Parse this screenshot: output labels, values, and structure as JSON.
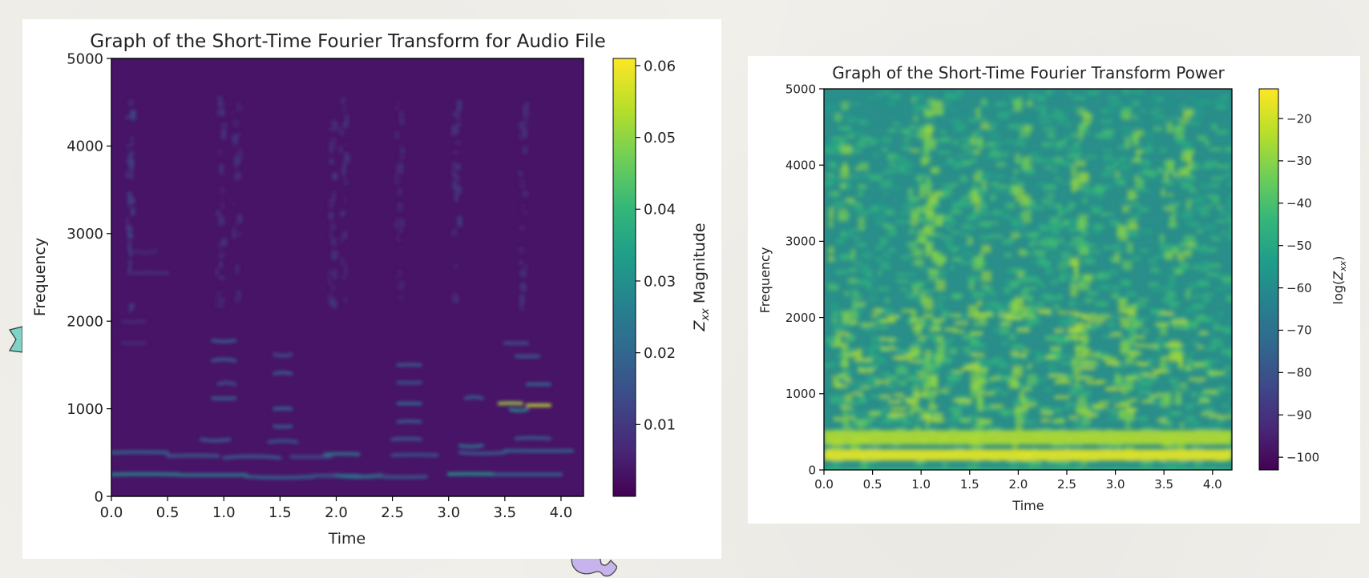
{
  "colors": {
    "viridis": [
      "#440154",
      "#482878",
      "#3e4989",
      "#31688e",
      "#26828e",
      "#1f9e89",
      "#35b779",
      "#6ece58",
      "#b5de2b",
      "#fde725"
    ],
    "page_background": "#f1efea",
    "panel_background": "#ffffff"
  },
  "chart_data": [
    {
      "type": "heatmap",
      "title": "Graph of the Short-Time Fourier Transform for Audio File",
      "xlabel": "Time",
      "ylabel": "Frequency",
      "xlim": [
        0,
        4.2
      ],
      "ylim": [
        0,
        5000
      ],
      "x_ticks": [
        "0.0",
        "0.5",
        "1.0",
        "1.5",
        "2.0",
        "2.5",
        "3.0",
        "3.5",
        "4.0"
      ],
      "y_ticks": [
        "0",
        "1000",
        "2000",
        "3000",
        "4000",
        "5000"
      ],
      "colorbar": {
        "label": "Z_xx Magnitude",
        "range": [
          0,
          0.061
        ],
        "ticks": [
          "0.01",
          "0.02",
          "0.03",
          "0.04",
          "0.05",
          "0.06"
        ]
      },
      "description_of_values": "Mostly near-zero magnitude; strongest energy in harmonics below ~2000 Hz, peak ~0.055 near t=3.5-3.8 s at ~1050 Hz, strong fundamental ~250 Hz."
    },
    {
      "type": "heatmap",
      "title": "Graph of the Short-Time Fourier Transform Power",
      "xlabel": "Time",
      "ylabel": "Frequency",
      "xlim": [
        0,
        4.2
      ],
      "ylim": [
        0,
        5000
      ],
      "x_ticks": [
        "0.0",
        "0.5",
        "1.0",
        "1.5",
        "2.0",
        "2.5",
        "3.0",
        "3.5",
        "4.0"
      ],
      "y_ticks": [
        "0",
        "1000",
        "2000",
        "3000",
        "4000",
        "5000"
      ],
      "colorbar": {
        "label": "log(Z_xx)",
        "range": [
          -103,
          -13
        ],
        "ticks": [
          "−20",
          "−30",
          "−40",
          "−50",
          "−60",
          "−70",
          "−80",
          "−90",
          "−100"
        ]
      },
      "description_of_values": "Log power; mostly -40 to -50 across spectrum with bright yellow harmonic bands (~-20) at ~250 Hz and ~500 Hz and vertical bright columns at speech onsets."
    }
  ]
}
